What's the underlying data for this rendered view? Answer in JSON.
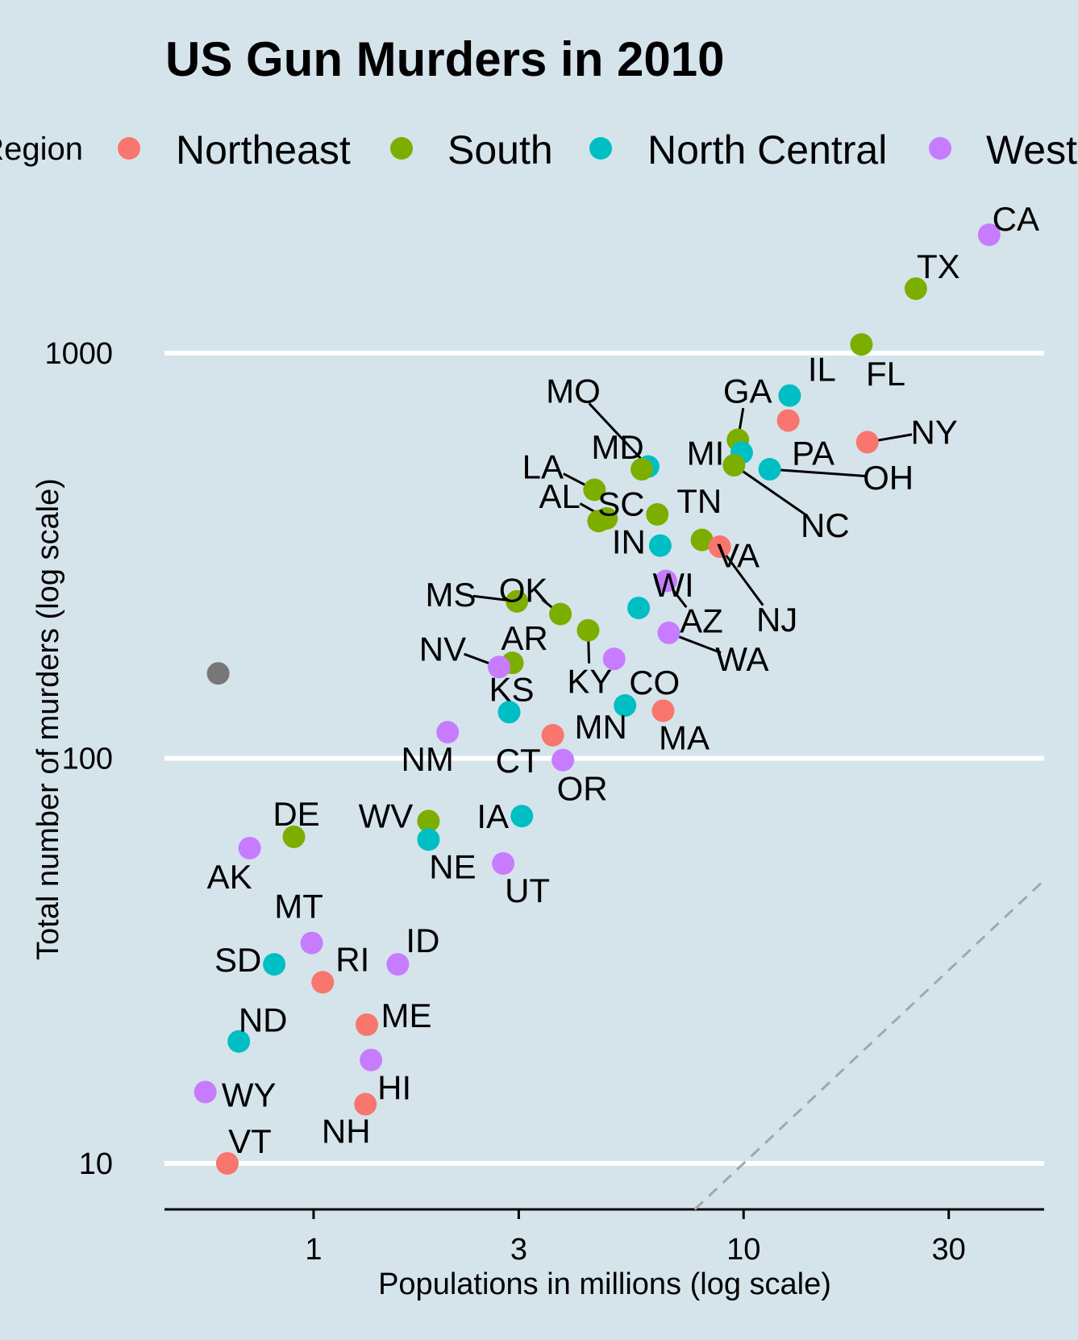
{
  "chart_data": {
    "type": "scatter",
    "title": "US Gun Murders in 2010",
    "xlabel": "Populations in millions (log scale)",
    "ylabel": "Total number of murders (log scale)",
    "x_scale": "log10",
    "y_scale": "log10",
    "xlim": [
      0.45,
      50
    ],
    "ylim": [
      7.7,
      2200
    ],
    "x_ticks": [
      1,
      3,
      10,
      30
    ],
    "x_tick_labels": [
      "1",
      "3",
      "10",
      "30"
    ],
    "y_ticks": [
      10,
      100,
      1000
    ],
    "y_tick_labels": [
      "10",
      "100",
      "1000"
    ],
    "grid": "horizontal major lines only",
    "reference_line": {
      "style": "dashed",
      "color": "#a6a6a6",
      "slope": 1,
      "murders_per_million": 1
    },
    "legend": {
      "title": "Region",
      "position": "top",
      "entries": [
        {
          "name": "Northeast",
          "color": "#f8766d"
        },
        {
          "name": "South",
          "color": "#7cae00"
        },
        {
          "name": "North Central",
          "color": "#00bfc4"
        },
        {
          "name": "West",
          "color": "#c77cff"
        }
      ]
    },
    "extra_point": {
      "x": 0.6,
      "y": 162,
      "color": "#777777"
    },
    "points": [
      {
        "state": "CA",
        "region": "West",
        "x": 37.25,
        "y": 1960
      },
      {
        "state": "TX",
        "region": "South",
        "x": 25.15,
        "y": 1443
      },
      {
        "state": "FL",
        "region": "South",
        "x": 18.8,
        "y": 1051
      },
      {
        "state": "IL",
        "region": "North Central",
        "x": 12.8,
        "y": 786
      },
      {
        "state": "NY",
        "region": "Northeast",
        "x": 19.4,
        "y": 603
      },
      {
        "state": "GA",
        "region": "South",
        "x": 9.7,
        "y": 611
      },
      {
        "state": "PA",
        "region": "Northeast",
        "x": 12.7,
        "y": 682
      },
      {
        "state": "MI",
        "region": "North Central",
        "x": 9.9,
        "y": 568
      },
      {
        "state": "OH",
        "region": "North Central",
        "x": 11.5,
        "y": 517
      },
      {
        "state": "NC",
        "region": "South",
        "x": 9.5,
        "y": 529
      },
      {
        "state": "MO",
        "region": "North Central",
        "x": 6.0,
        "y": 525
      },
      {
        "state": "MD",
        "region": "South",
        "x": 5.8,
        "y": 517
      },
      {
        "state": "LA",
        "region": "South",
        "x": 4.5,
        "y": 460
      },
      {
        "state": "SC",
        "region": "South",
        "x": 4.6,
        "y": 385
      },
      {
        "state": "TN",
        "region": "South",
        "x": 6.3,
        "y": 400
      },
      {
        "state": "IN",
        "region": "North Central",
        "x": 6.4,
        "y": 335
      },
      {
        "state": "AL",
        "region": "South",
        "x": 4.8,
        "y": 391
      },
      {
        "state": "VA",
        "region": "South",
        "x": 8.0,
        "y": 346
      },
      {
        "state": "NJ",
        "region": "Northeast",
        "x": 8.8,
        "y": 333
      },
      {
        "state": "AZ",
        "region": "West",
        "x": 6.6,
        "y": 274
      },
      {
        "state": "WA",
        "region": "West",
        "x": 6.7,
        "y": 204
      },
      {
        "state": "MS",
        "region": "South",
        "x": 2.97,
        "y": 244
      },
      {
        "state": "OK",
        "region": "South",
        "x": 3.75,
        "y": 227
      },
      {
        "state": "WI",
        "region": "North Central",
        "x": 5.7,
        "y": 235
      },
      {
        "state": "KY",
        "region": "South",
        "x": 4.35,
        "y": 207
      },
      {
        "state": "AR",
        "region": "South",
        "x": 2.9,
        "y": 172
      },
      {
        "state": "NV",
        "region": "West",
        "x": 2.7,
        "y": 168
      },
      {
        "state": "CO",
        "region": "West",
        "x": 5.0,
        "y": 176
      },
      {
        "state": "KS",
        "region": "North Central",
        "x": 2.85,
        "y": 130
      },
      {
        "state": "MN",
        "region": "North Central",
        "x": 5.3,
        "y": 135
      },
      {
        "state": "MA",
        "region": "Northeast",
        "x": 6.5,
        "y": 131
      },
      {
        "state": "CT",
        "region": "Northeast",
        "x": 3.6,
        "y": 114
      },
      {
        "state": "NM",
        "region": "West",
        "x": 2.05,
        "y": 116
      },
      {
        "state": "OR",
        "region": "West",
        "x": 3.8,
        "y": 99
      },
      {
        "state": "IA",
        "region": "North Central",
        "x": 3.05,
        "y": 72
      },
      {
        "state": "WV",
        "region": "South",
        "x": 1.85,
        "y": 70
      },
      {
        "state": "NE",
        "region": "North Central",
        "x": 1.85,
        "y": 63
      },
      {
        "state": "UT",
        "region": "West",
        "x": 2.76,
        "y": 55
      },
      {
        "state": "DE",
        "region": "South",
        "x": 0.9,
        "y": 64
      },
      {
        "state": "AK",
        "region": "West",
        "x": 0.71,
        "y": 60
      },
      {
        "state": "MT",
        "region": "West",
        "x": 0.99,
        "y": 35
      },
      {
        "state": "RI",
        "region": "Northeast",
        "x": 1.05,
        "y": 28
      },
      {
        "state": "SD",
        "region": "North Central",
        "x": 0.81,
        "y": 31
      },
      {
        "state": "ID",
        "region": "West",
        "x": 1.57,
        "y": 31
      },
      {
        "state": "ME",
        "region": "Northeast",
        "x": 1.33,
        "y": 22
      },
      {
        "state": "ND",
        "region": "North Central",
        "x": 0.67,
        "y": 20
      },
      {
        "state": "HI",
        "region": "West",
        "x": 1.36,
        "y": 18
      },
      {
        "state": "WY",
        "region": "West",
        "x": 0.56,
        "y": 15
      },
      {
        "state": "NH",
        "region": "Northeast",
        "x": 1.32,
        "y": 14
      },
      {
        "state": "VT",
        "region": "Northeast",
        "x": 0.63,
        "y": 10
      }
    ]
  }
}
